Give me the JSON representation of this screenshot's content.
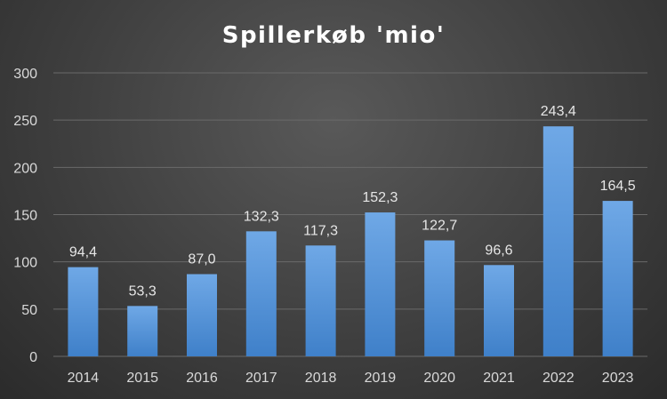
{
  "chart_data": {
    "type": "bar",
    "title": "Spillerkøb 'mio'",
    "xlabel": "",
    "ylabel": "",
    "categories": [
      "2014",
      "2015",
      "2016",
      "2017",
      "2018",
      "2019",
      "2020",
      "2021",
      "2022",
      "2023"
    ],
    "values": [
      94.4,
      53.3,
      87.0,
      132.3,
      117.3,
      152.3,
      122.7,
      96.6,
      243.4,
      164.5
    ],
    "data_labels": [
      "94,4",
      "53,3",
      "87,0",
      "132,3",
      "117,3",
      "152,3",
      "122,7",
      "96,6",
      "243,4",
      "164,5"
    ],
    "ylim": [
      0,
      300
    ],
    "yticks": [
      "0",
      "50",
      "100",
      "150",
      "200",
      "250",
      "300"
    ],
    "grid": true,
    "legend": "none",
    "colors": {
      "bar_top": "#6fa8e6",
      "bar_bottom": "#3f80c9",
      "background": "#404040"
    }
  }
}
